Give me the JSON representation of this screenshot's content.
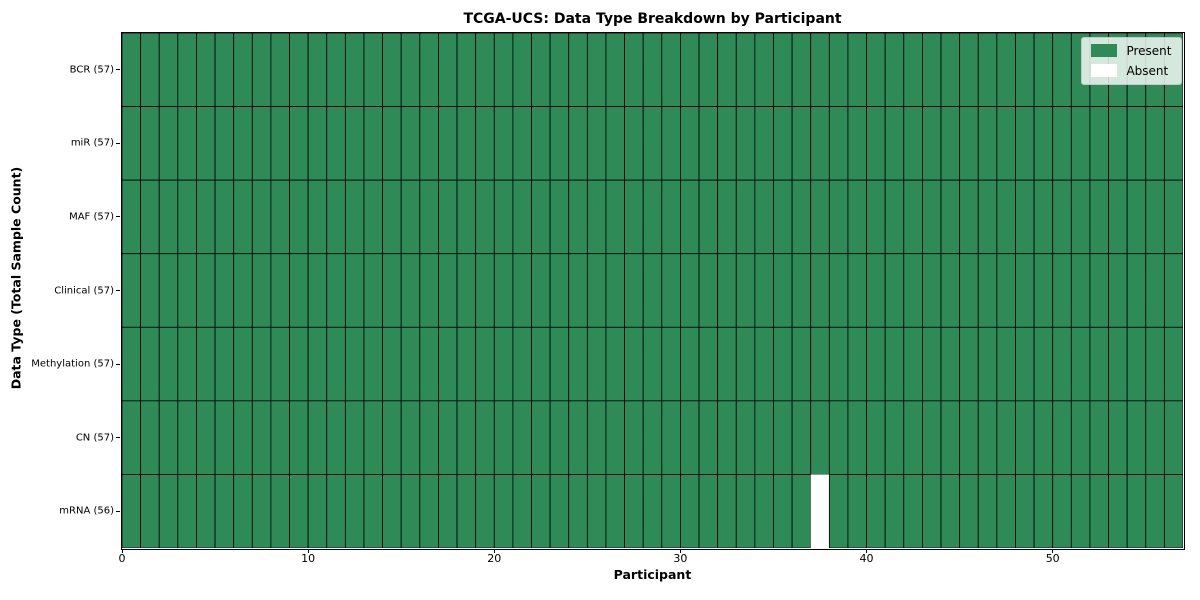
{
  "figure": {
    "background_color": "#ffffff"
  },
  "chart_data": {
    "type": "heatmap",
    "title": "TCGA-UCS: Data Type Breakdown by Participant",
    "xlabel": "Participant",
    "ylabel": "Data Type (Total Sample Count)",
    "x_ticks": [
      0,
      10,
      20,
      30,
      40,
      50
    ],
    "x_range": [
      0,
      57
    ],
    "n_participants": 57,
    "rows": [
      {
        "name": "BCR",
        "label": "BCR (57)",
        "present_count": 57
      },
      {
        "name": "miR",
        "label": "miR (57)",
        "present_count": 57
      },
      {
        "name": "MAF",
        "label": "MAF (57)",
        "present_count": 57
      },
      {
        "name": "Clinical",
        "label": "Clinical (57)",
        "present_count": 57
      },
      {
        "name": "Methylation",
        "label": "Methylation (57)",
        "present_count": 57
      },
      {
        "name": "CN",
        "label": "CN (57)",
        "present_count": 57
      },
      {
        "name": "mRNA",
        "label": "mRNA (56)",
        "present_count": 56
      }
    ],
    "absent_cells": [
      {
        "row": "mRNA",
        "participant": 37
      }
    ],
    "legend": [
      {
        "label": "Present",
        "color": "#2E8B57"
      },
      {
        "label": "Absent",
        "color": "#FFFFFF"
      }
    ],
    "legend_position": "upper right",
    "colors": {
      "present": "#2E8B57",
      "absent": "#FFFFFF",
      "cell_edge": "#000000"
    },
    "grid": true
  }
}
